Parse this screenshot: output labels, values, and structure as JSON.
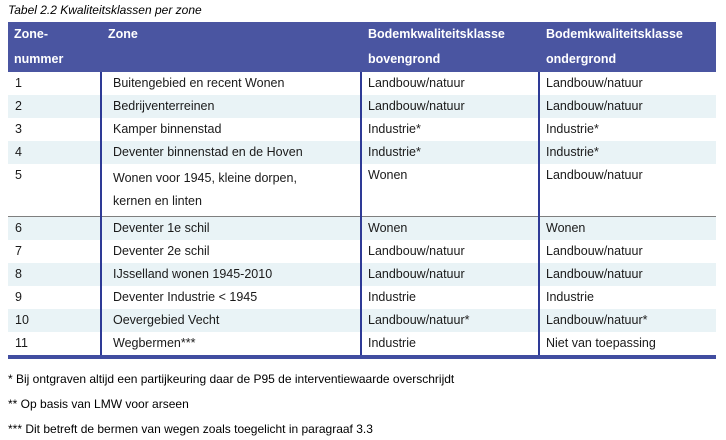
{
  "title": "Tabel 2.2 Kwaliteitsklassen per zone",
  "table": {
    "header": [
      {
        "lines": [
          "Zone-",
          "nummer"
        ]
      },
      {
        "lines": [
          "Zone"
        ]
      },
      {
        "lines": [
          "Bodemkwaliteitsklasse",
          "bovengrond"
        ]
      },
      {
        "lines": [
          "Bodemkwaliteitsklasse",
          "ondergrond"
        ]
      }
    ],
    "rows": [
      {
        "zone_nummer": "1",
        "zone": [
          "Buitengebied en recent Wonen"
        ],
        "bovengrond": "Landbouw/natuur",
        "ondergrond": "Landbouw/natuur"
      },
      {
        "zone_nummer": "2",
        "zone": [
          "Bedrijventerreinen"
        ],
        "bovengrond": "Landbouw/natuur",
        "ondergrond": "Landbouw/natuur"
      },
      {
        "zone_nummer": "3",
        "zone": [
          "Kamper binnenstad"
        ],
        "bovengrond": "Industrie*",
        "ondergrond": "Industrie*"
      },
      {
        "zone_nummer": "4",
        "zone": [
          "Deventer binnenstad en de Hoven"
        ],
        "bovengrond": "Industrie*",
        "ondergrond": "Industrie*"
      },
      {
        "zone_nummer": "5",
        "zone": [
          "Wonen voor 1945, kleine dorpen,",
          "kernen en linten"
        ],
        "bovengrond": "Wonen",
        "ondergrond": "Landbouw/natuur"
      },
      {
        "zone_nummer": "6",
        "zone": [
          "Deventer 1e schil"
        ],
        "bovengrond": "Wonen",
        "ondergrond": "Wonen"
      },
      {
        "zone_nummer": "7",
        "zone": [
          "Deventer 2e schil"
        ],
        "bovengrond": "Landbouw/natuur",
        "ondergrond": "Landbouw/natuur"
      },
      {
        "zone_nummer": "8",
        "zone": [
          "IJsselland wonen 1945-2010"
        ],
        "bovengrond": "Landbouw/natuur",
        "ondergrond": "Landbouw/natuur"
      },
      {
        "zone_nummer": "9",
        "zone": [
          "Deventer Industrie < 1945"
        ],
        "bovengrond": "Industrie",
        "ondergrond": "Industrie"
      },
      {
        "zone_nummer": "10",
        "zone": [
          "Oevergebied Vecht"
        ],
        "bovengrond": "Landbouw/natuur*",
        "ondergrond": "Landbouw/natuur*"
      },
      {
        "zone_nummer": "11",
        "zone": [
          "Wegbermen***"
        ],
        "bovengrond": "Industrie",
        "ondergrond": "Niet van toepassing"
      }
    ]
  },
  "footnotes": [
    "* Bij ontgraven altijd een partijkeuring daar de P95 de interventiewaarde overschrijdt",
    "** Op basis van LMW voor arseen",
    "*** Dit betreft de bermen van wegen zoals toegelicht in paragraaf 3.3"
  ],
  "colors": {
    "header_bg": "#4a55a1",
    "header_text": "#ffffff",
    "row_alt_bg": "#e9f3f6",
    "column_border": "#2e3a96",
    "bottom_border": "#414da0",
    "row_divider": "#7f7f7f",
    "body_text": "#1a1a1a"
  }
}
